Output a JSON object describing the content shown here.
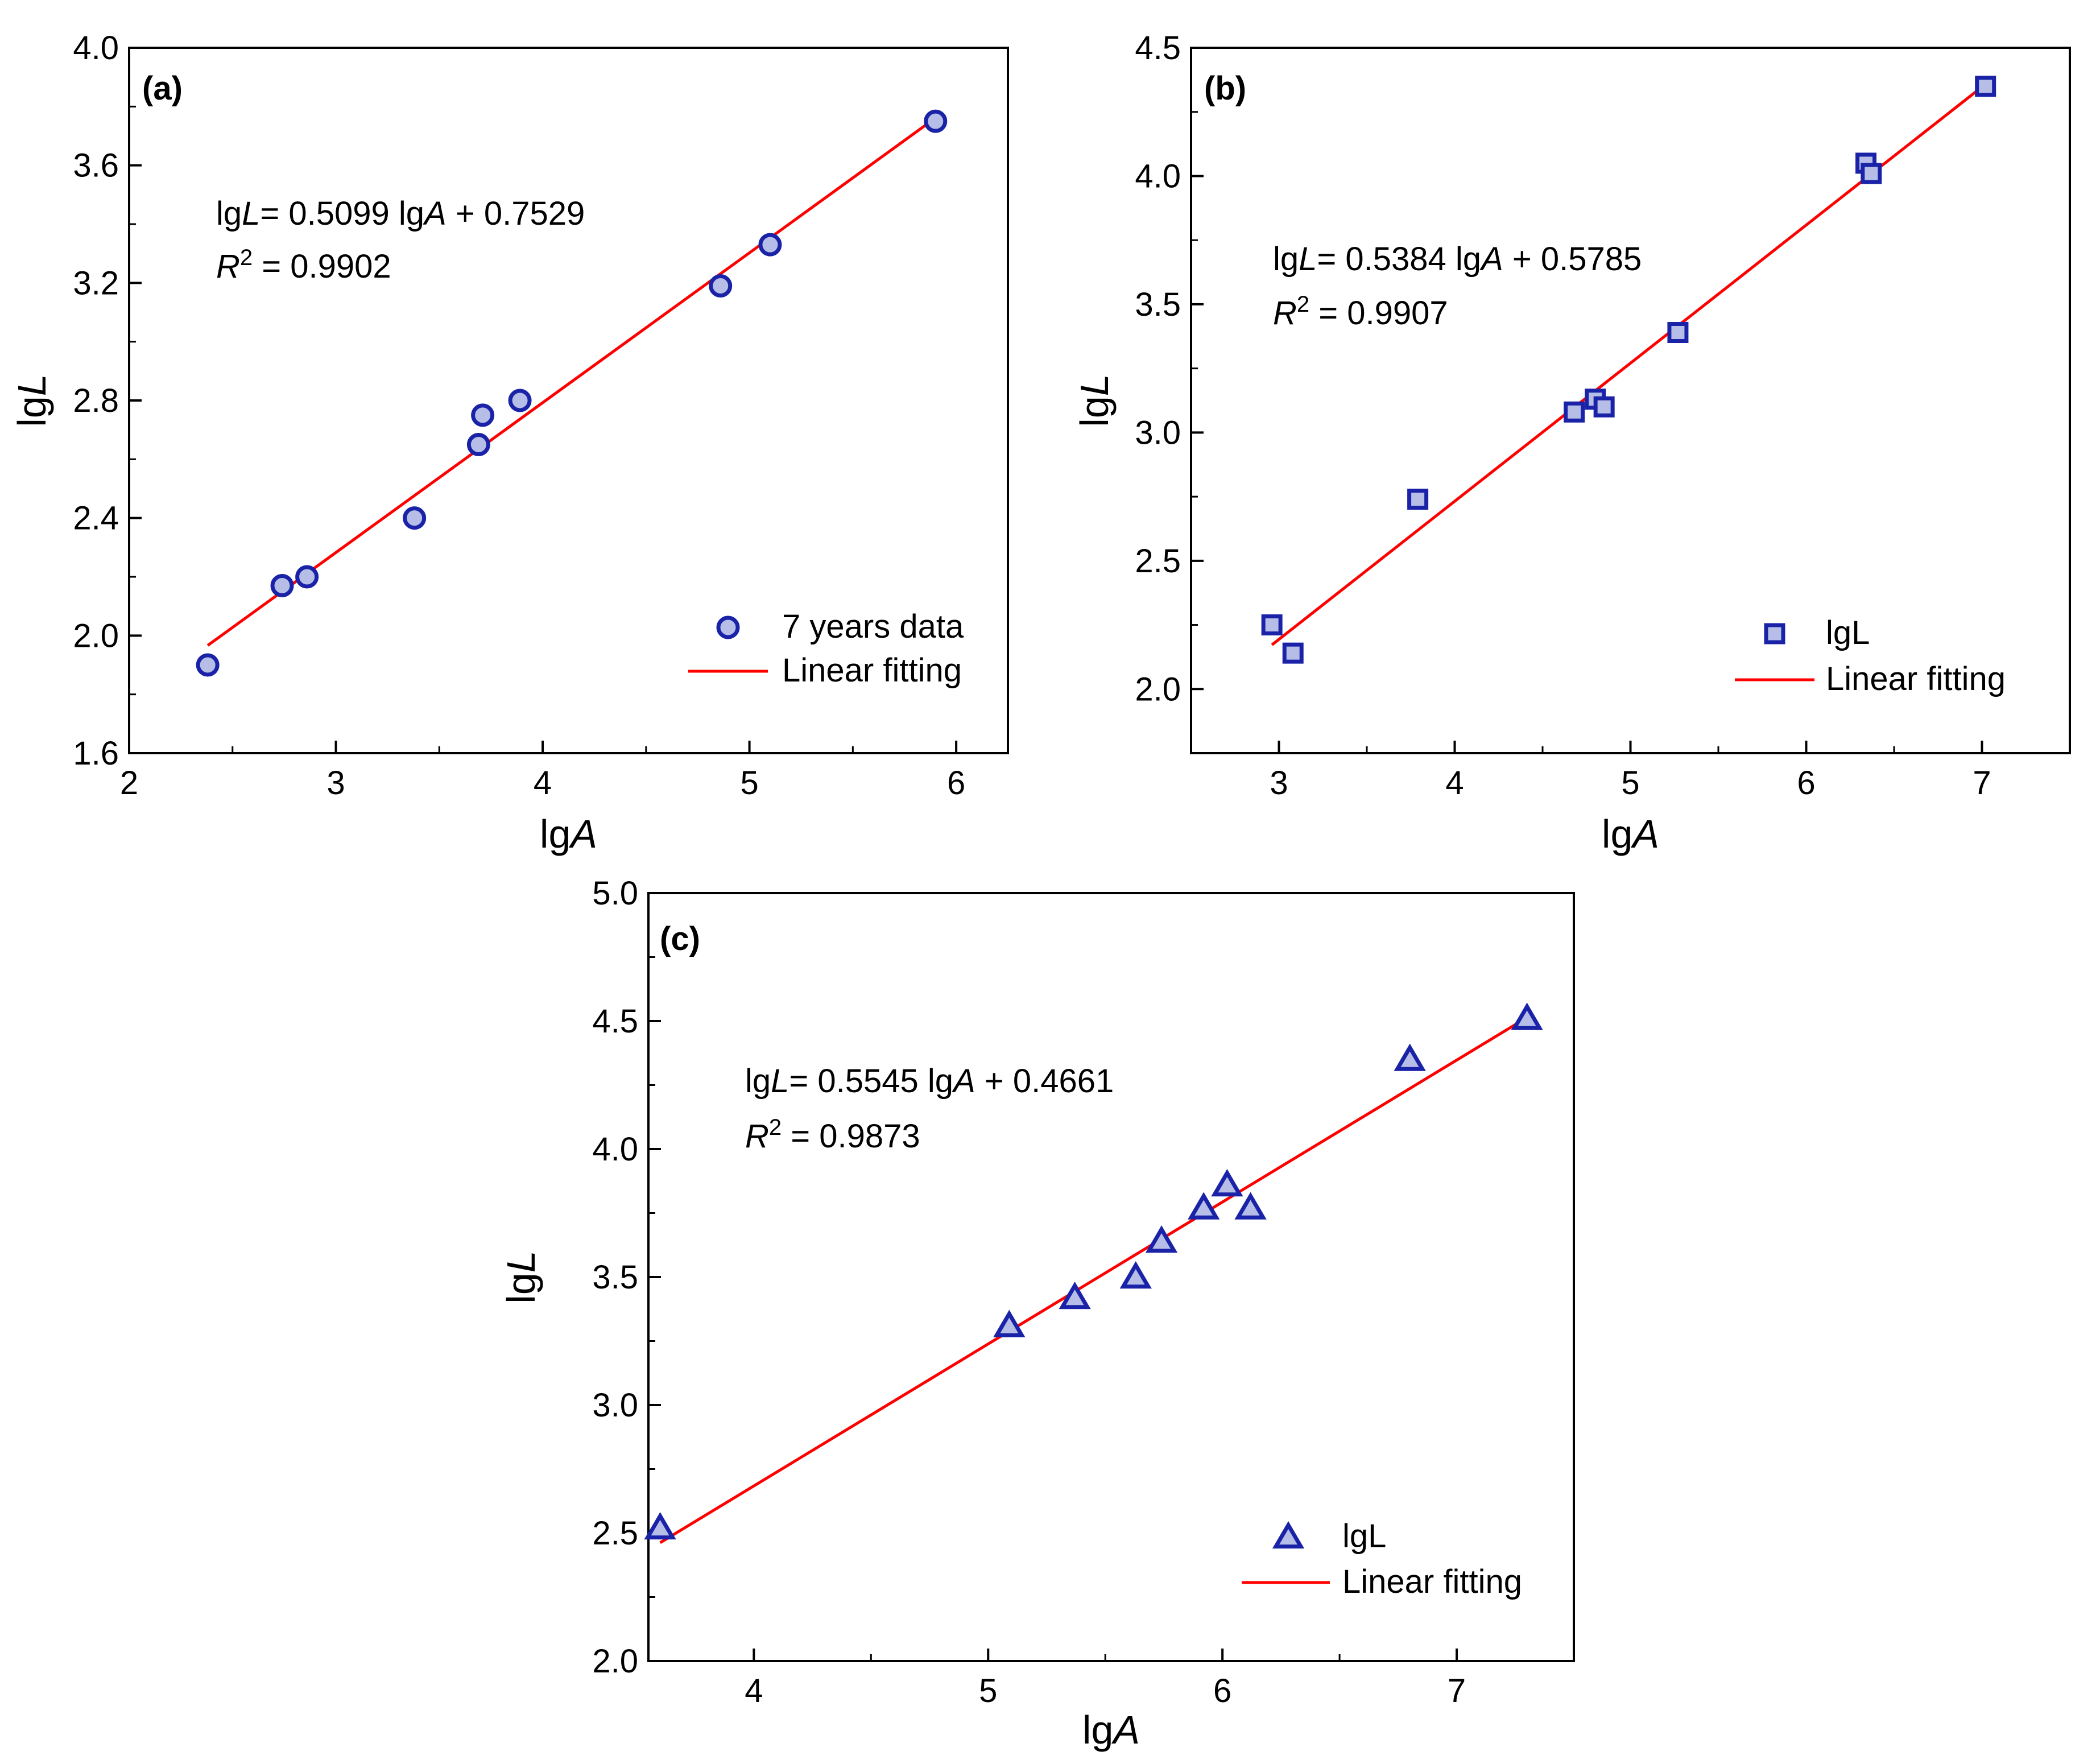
{
  "figure": {
    "background": "#ffffff",
    "marker_fill": "#b6bee8",
    "marker_stroke": "#1a23a8",
    "fit_color": "#ff0000"
  },
  "chart_data": [
    {
      "id": "a",
      "type": "scatter",
      "panel_label": "(a)",
      "marker": "circle",
      "xlabel_prefix": "lg",
      "xlabel_var": "A",
      "ylabel_prefix": "lg",
      "ylabel_var": "L",
      "xlim": [
        2,
        6.25
      ],
      "ylim": [
        1.6,
        4.0
      ],
      "xticks": [
        2,
        3,
        4,
        5,
        6
      ],
      "xtick_labels": [
        "2",
        "3",
        "4",
        "5",
        "6"
      ],
      "yticks": [
        1.6,
        2.0,
        2.4,
        2.8,
        3.2,
        3.6,
        4.0
      ],
      "ytick_labels": [
        "1.6",
        "2.0",
        "2.4",
        "2.8",
        "3.2",
        "3.6",
        "4.0"
      ],
      "points": [
        [
          2.38,
          1.9
        ],
        [
          2.74,
          2.17
        ],
        [
          2.86,
          2.2
        ],
        [
          3.38,
          2.4
        ],
        [
          3.69,
          2.65
        ],
        [
          3.71,
          2.75
        ],
        [
          3.89,
          2.8
        ],
        [
          4.86,
          3.19
        ],
        [
          5.1,
          3.33
        ],
        [
          5.9,
          3.75
        ]
      ],
      "fit": {
        "slope": 0.5099,
        "intercept": 0.7529,
        "x_range": [
          2.38,
          5.9
        ]
      },
      "equation": {
        "lhs_prefix": "lg",
        "lhs_var": "L",
        "rhs": "= 0.5099 lg",
        "rhs_var": "A",
        "tail": " + 0.7529"
      },
      "r2": {
        "var": "R",
        "sup": "2",
        "text": " = 0.9902"
      },
      "legend": {
        "marker_label": "7 years data",
        "line_label": "Linear fitting",
        "position": "bottom-right"
      }
    },
    {
      "id": "b",
      "type": "scatter",
      "panel_label": "(b)",
      "marker": "square",
      "xlabel_prefix": "lg",
      "xlabel_var": "A",
      "ylabel_prefix": "lg",
      "ylabel_var": "L",
      "xlim": [
        2.5,
        7.5
      ],
      "ylim": [
        1.75,
        4.5
      ],
      "xticks": [
        3,
        4,
        5,
        6,
        7
      ],
      "xtick_labels": [
        "3",
        "4",
        "5",
        "6",
        "7"
      ],
      "yticks": [
        2.0,
        2.5,
        3.0,
        3.5,
        4.0,
        4.5
      ],
      "ytick_labels": [
        "2.0",
        "2.5",
        "3.0",
        "3.5",
        "4.0",
        "4.5"
      ],
      "points": [
        [
          2.96,
          2.25
        ],
        [
          3.08,
          2.14
        ],
        [
          3.79,
          2.74
        ],
        [
          4.68,
          3.08
        ],
        [
          4.8,
          3.13
        ],
        [
          4.85,
          3.1
        ],
        [
          5.27,
          3.39
        ],
        [
          6.34,
          4.05
        ],
        [
          6.37,
          4.01
        ],
        [
          7.02,
          4.35
        ]
      ],
      "fit": {
        "slope": 0.5384,
        "intercept": 0.5785,
        "x_range": [
          2.96,
          7.02
        ]
      },
      "equation": {
        "lhs_prefix": "lg",
        "lhs_var": "L",
        "rhs": "= 0.5384 lg",
        "rhs_var": "A",
        "tail": " + 0.5785"
      },
      "r2": {
        "var": "R",
        "sup": "2",
        "text": " = 0.9907"
      },
      "legend": {
        "marker_label": "lgL",
        "line_label": "Linear fitting",
        "position": "bottom-right"
      }
    },
    {
      "id": "c",
      "type": "scatter",
      "panel_label": "(c)",
      "marker": "triangle",
      "xlabel_prefix": "lg",
      "xlabel_var": "A",
      "ylabel_prefix": "lg",
      "ylabel_var": "L",
      "xlim": [
        3.55,
        7.5
      ],
      "ylim": [
        2.0,
        5.0
      ],
      "xticks": [
        4,
        5,
        6,
        7
      ],
      "xtick_labels": [
        "4",
        "5",
        "6",
        "7"
      ],
      "yticks": [
        2.0,
        2.5,
        3.0,
        3.5,
        4.0,
        4.5,
        5.0
      ],
      "ytick_labels": [
        "2.0",
        "2.5",
        "3.0",
        "3.5",
        "4.0",
        "4.5",
        "5.0"
      ],
      "points": [
        [
          3.6,
          2.52
        ],
        [
          5.09,
          3.31
        ],
        [
          5.37,
          3.42
        ],
        [
          5.63,
          3.5
        ],
        [
          5.74,
          3.64
        ],
        [
          5.92,
          3.77
        ],
        [
          6.02,
          3.86
        ],
        [
          6.12,
          3.77
        ],
        [
          6.8,
          4.35
        ],
        [
          7.3,
          4.51
        ]
      ],
      "fit": {
        "slope": 0.5545,
        "intercept": 0.4661,
        "x_range": [
          3.6,
          7.3
        ]
      },
      "equation": {
        "lhs_prefix": "lg",
        "lhs_var": "L",
        "rhs": "= 0.5545 lg",
        "rhs_var": "A",
        "tail": " + 0.4661"
      },
      "r2": {
        "var": "R",
        "sup": "2",
        "text": " = 0.9873"
      },
      "legend": {
        "marker_label": "lgL",
        "line_label": "Linear fitting",
        "position": "bottom-right"
      }
    }
  ]
}
